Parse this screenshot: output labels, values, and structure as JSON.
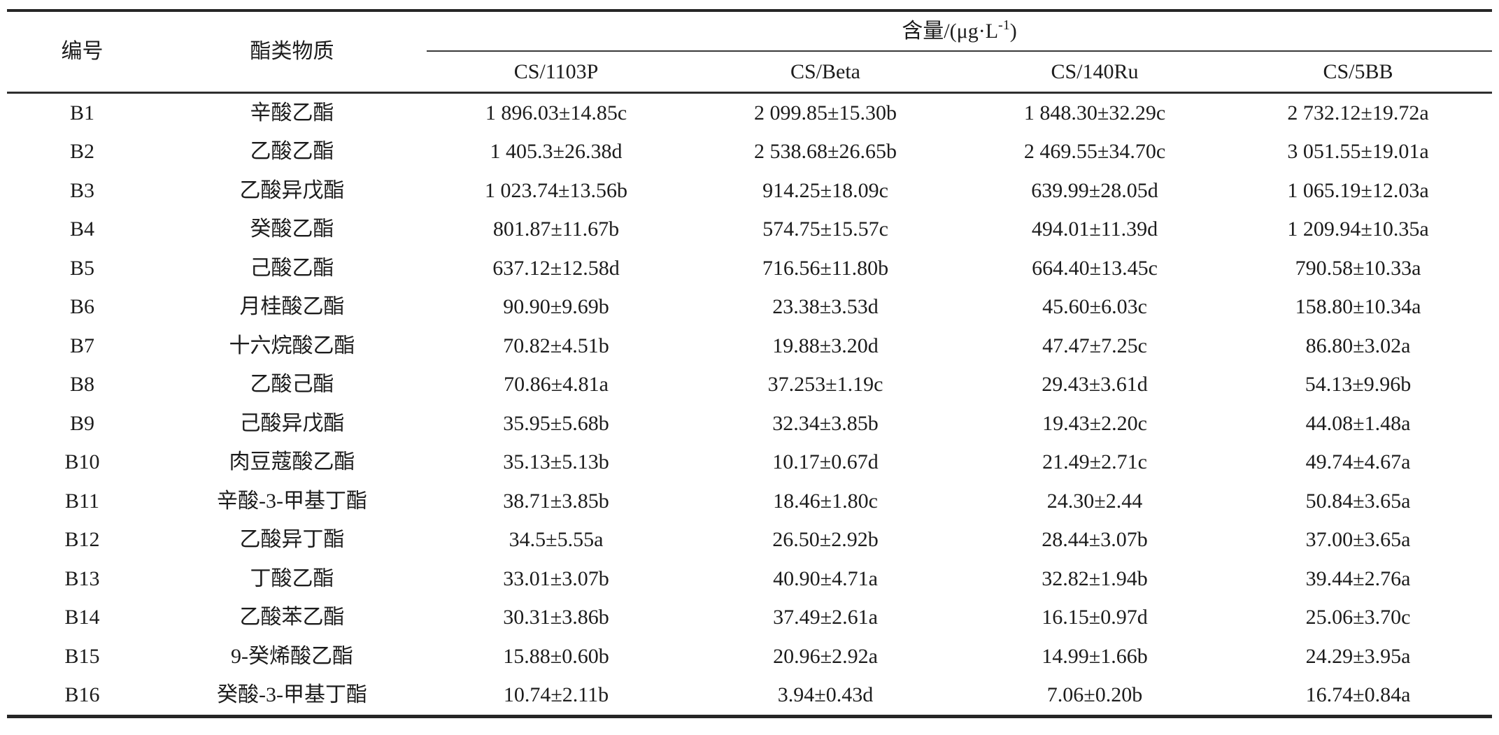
{
  "table": {
    "header": {
      "col_id": "编号",
      "col_substance": "酯类物质",
      "group_label_pre": "含量/(μg·L",
      "group_sup": "-1",
      "group_label_post": ")",
      "sample_columns": [
        "CS/1103P",
        "CS/Beta",
        "CS/140Ru",
        "CS/5BB"
      ]
    },
    "rows": [
      {
        "id": "B1",
        "substance": "辛酸乙酯",
        "values": [
          "1 896.03±14.85c",
          "2 099.85±15.30b",
          "1 848.30±32.29c",
          "2 732.12±19.72a"
        ]
      },
      {
        "id": "B2",
        "substance": "乙酸乙酯",
        "values": [
          "1 405.3±26.38d",
          "2 538.68±26.65b",
          "2 469.55±34.70c",
          "3 051.55±19.01a"
        ]
      },
      {
        "id": "B3",
        "substance": "乙酸异戊酯",
        "values": [
          "1 023.74±13.56b",
          "914.25±18.09c",
          "639.99±28.05d",
          "1 065.19±12.03a"
        ]
      },
      {
        "id": "B4",
        "substance": "癸酸乙酯",
        "values": [
          "801.87±11.67b",
          "574.75±15.57c",
          "494.01±11.39d",
          "1 209.94±10.35a"
        ]
      },
      {
        "id": "B5",
        "substance": "己酸乙酯",
        "values": [
          "637.12±12.58d",
          "716.56±11.80b",
          "664.40±13.45c",
          "790.58±10.33a"
        ]
      },
      {
        "id": "B6",
        "substance": "月桂酸乙酯",
        "values": [
          "90.90±9.69b",
          "23.38±3.53d",
          "45.60±6.03c",
          "158.80±10.34a"
        ]
      },
      {
        "id": "B7",
        "substance": "十六烷酸乙酯",
        "values": [
          "70.82±4.51b",
          "19.88±3.20d",
          "47.47±7.25c",
          "86.80±3.02a"
        ]
      },
      {
        "id": "B8",
        "substance": "乙酸己酯",
        "values": [
          "70.86±4.81a",
          "37.253±1.19c",
          "29.43±3.61d",
          "54.13±9.96b"
        ]
      },
      {
        "id": "B9",
        "substance": "己酸异戊酯",
        "values": [
          "35.95±5.68b",
          "32.34±3.85b",
          "19.43±2.20c",
          "44.08±1.48a"
        ]
      },
      {
        "id": "B10",
        "substance": "肉豆蔻酸乙酯",
        "values": [
          "35.13±5.13b",
          "10.17±0.67d",
          "21.49±2.71c",
          "49.74±4.67a"
        ]
      },
      {
        "id": "B11",
        "substance": "辛酸-3-甲基丁酯",
        "values": [
          "38.71±3.85b",
          "18.46±1.80c",
          "24.30±2.44",
          "50.84±3.65a"
        ]
      },
      {
        "id": "B12",
        "substance": "乙酸异丁酯",
        "values": [
          "34.5±5.55a",
          "26.50±2.92b",
          "28.44±3.07b",
          "37.00±3.65a"
        ]
      },
      {
        "id": "B13",
        "substance": "丁酸乙酯",
        "values": [
          "33.01±3.07b",
          "40.90±4.71a",
          "32.82±1.94b",
          "39.44±2.76a"
        ]
      },
      {
        "id": "B14",
        "substance": "乙酸苯乙酯",
        "values": [
          "30.31±3.86b",
          "37.49±2.61a",
          "16.15±0.97d",
          "25.06±3.70c"
        ]
      },
      {
        "id": "B15",
        "substance": "9-癸烯酸乙酯",
        "values": [
          "15.88±0.60b",
          "20.96±2.92a",
          "14.99±1.66b",
          "24.29±3.95a"
        ]
      },
      {
        "id": "B16",
        "substance": "癸酸-3-甲基丁酯",
        "values": [
          "10.74±2.11b",
          "3.94±0.43d",
          "7.06±0.20b",
          "16.74±0.84a"
        ]
      }
    ]
  }
}
